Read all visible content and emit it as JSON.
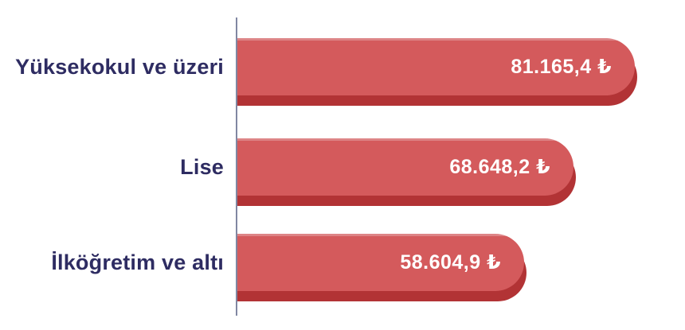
{
  "chart_data": {
    "type": "bar",
    "orientation": "horizontal",
    "title": "",
    "xlabel": "",
    "ylabel": "",
    "categories": [
      "Yüksekokul ve üzeri",
      "Lise",
      "İlköğretim ve altı"
    ],
    "values": [
      81165.4,
      68648.2,
      58604.9
    ],
    "display_values": [
      "81.165,4 ₺",
      "68.648,2 ₺",
      "58.604,9 ₺"
    ],
    "unit": "₺",
    "value_range": [
      0,
      81165.4
    ],
    "grid": false,
    "legend": false,
    "colors": {
      "bar_fill": "#D45A5C",
      "bar_shadow": "#B23335",
      "bar_highlight": "#DD8486",
      "category_text": "#2E2C62",
      "value_text": "#FFFFFF",
      "axis_line": "#8087A2",
      "background": "#FFFFFF"
    }
  }
}
